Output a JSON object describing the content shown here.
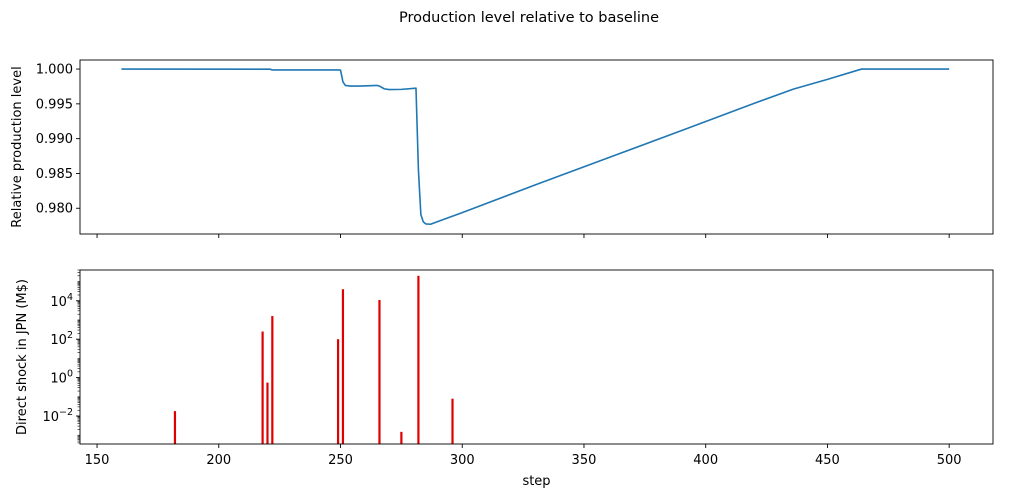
{
  "figure_title": "Production level relative to baseline",
  "colors": {
    "line": "#1f77b4",
    "bars": "#e00000",
    "axes": "#000000"
  },
  "chart_data": [
    {
      "type": "line",
      "title": "",
      "xlabel": "",
      "ylabel": "Relative production level",
      "xlim": [
        143,
        518
      ],
      "ylim": [
        0.9763,
        1.0013
      ],
      "x_ticks": [
        150,
        200,
        250,
        300,
        350,
        400,
        450,
        500
      ],
      "x_tick_labels_shown": false,
      "y_ticks": [
        0.98,
        0.985,
        0.99,
        0.995,
        1.0
      ],
      "y_tick_labels": [
        "0.980",
        "0.985",
        "0.990",
        "0.995",
        "1.000"
      ],
      "grid": false,
      "series": [
        {
          "points": [
            [
              160,
              1.0
            ],
            [
              221,
              0.99998
            ],
            [
              222,
              0.99987
            ],
            [
              249,
              0.99987
            ],
            [
              250,
              0.99985
            ],
            [
              251,
              0.99815
            ],
            [
              252,
              0.99765
            ],
            [
              254,
              0.99755
            ],
            [
              258,
              0.99755
            ],
            [
              265,
              0.99765
            ],
            [
              266,
              0.99755
            ],
            [
              268,
              0.99715
            ],
            [
              270,
              0.99705
            ],
            [
              275,
              0.99708
            ],
            [
              281,
              0.99725
            ],
            [
              282,
              0.9855
            ],
            [
              283,
              0.9791
            ],
            [
              284,
              0.97805
            ],
            [
              285,
              0.97775
            ],
            [
              287,
              0.9777
            ],
            [
              290,
              0.9781
            ],
            [
              300,
              0.97937
            ],
            [
              330,
              0.98336
            ],
            [
              360,
              0.98725
            ],
            [
              390,
              0.99115
            ],
            [
              420,
              0.99508
            ],
            [
              436,
              0.99712
            ],
            [
              450,
              0.99852
            ],
            [
              464,
              1.0
            ],
            [
              500,
              1.0
            ]
          ]
        }
      ]
    },
    {
      "type": "bar",
      "title": "",
      "xlabel": "step",
      "ylabel": "Direct shock in JPN (M$)",
      "yscale": "log",
      "xlim": [
        143,
        518
      ],
      "ylim": [
        0.00035,
        400000
      ],
      "x_ticks": [
        150,
        200,
        250,
        300,
        350,
        400,
        450,
        500
      ],
      "x_tick_labels": [
        "150",
        "200",
        "250",
        "300",
        "350",
        "400",
        "450",
        "500"
      ],
      "y_ticks": [
        0.01,
        1,
        100,
        10000
      ],
      "y_tick_labels": [
        {
          "base": "10",
          "exp": "−2"
        },
        {
          "base": "10",
          "exp": "0"
        },
        {
          "base": "10",
          "exp": "2"
        },
        {
          "base": "10",
          "exp": "4"
        }
      ],
      "grid": false,
      "bars": [
        {
          "x": 182,
          "value": 0.018
        },
        {
          "x": 218,
          "value": 250
        },
        {
          "x": 220,
          "value": 0.55
        },
        {
          "x": 222,
          "value": 1600
        },
        {
          "x": 249,
          "value": 100
        },
        {
          "x": 251,
          "value": 40000
        },
        {
          "x": 266,
          "value": 11000
        },
        {
          "x": 275,
          "value": 0.0015
        },
        {
          "x": 282,
          "value": 200000
        },
        {
          "x": 296,
          "value": 0.08
        }
      ]
    }
  ]
}
